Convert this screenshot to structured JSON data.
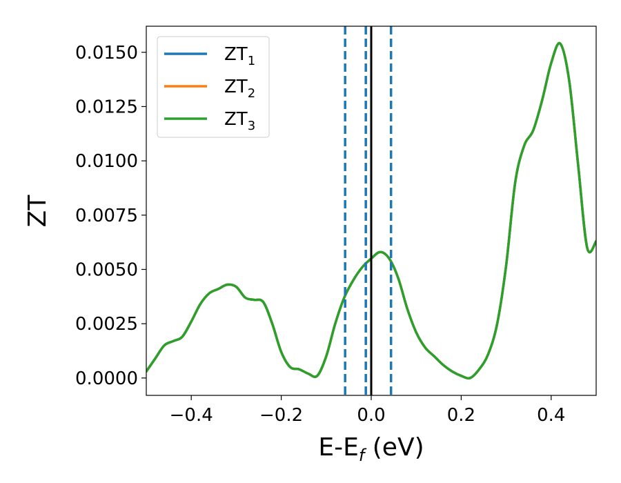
{
  "chart_data": {
    "type": "line",
    "xlabel": "E-E",
    "xlabel_sub": "f",
    "xlabel_unit": " (eV)",
    "ylabel": "ZT",
    "xlim": [
      -0.5,
      0.5
    ],
    "ylim": [
      -0.0008,
      0.0162
    ],
    "xticks": [
      -0.4,
      -0.2,
      0.0,
      0.2,
      0.4
    ],
    "xtick_labels": [
      "−0.4",
      "−0.2",
      "0.0",
      "0.2",
      "0.4"
    ],
    "yticks": [
      0.0,
      0.0025,
      0.005,
      0.0075,
      0.01,
      0.0125,
      0.015
    ],
    "ytick_labels": [
      "0.0000",
      "0.0025",
      "0.0050",
      "0.0075",
      "0.0100",
      "0.0125",
      "0.0150"
    ],
    "grid": false,
    "legend_position": "upper-left",
    "vlines": [
      {
        "x": 0.0,
        "style": "solid",
        "color": "#000000"
      },
      {
        "x": -0.058,
        "style": "dashed",
        "color": "#1f77b4"
      },
      {
        "x": -0.012,
        "style": "dashed",
        "color": "#1f77b4"
      },
      {
        "x": 0.044,
        "style": "dashed",
        "color": "#1f77b4"
      }
    ],
    "x": [
      -0.5,
      -0.48,
      -0.46,
      -0.44,
      -0.42,
      -0.4,
      -0.38,
      -0.36,
      -0.34,
      -0.32,
      -0.3,
      -0.28,
      -0.26,
      -0.24,
      -0.22,
      -0.2,
      -0.18,
      -0.16,
      -0.14,
      -0.12,
      -0.1,
      -0.08,
      -0.06,
      -0.04,
      -0.02,
      0.0,
      0.02,
      0.04,
      0.06,
      0.08,
      0.1,
      0.12,
      0.14,
      0.16,
      0.18,
      0.2,
      0.22,
      0.24,
      0.26,
      0.28,
      0.3,
      0.32,
      0.34,
      0.36,
      0.38,
      0.4,
      0.42,
      0.44,
      0.46,
      0.48,
      0.5
    ],
    "series": [
      {
        "name": "ZT",
        "name_sub": "1",
        "color": "#1f77b4",
        "values": [
          0.0003,
          0.0009,
          0.0015,
          0.0017,
          0.0019,
          0.0026,
          0.0034,
          0.0039,
          0.0041,
          0.0043,
          0.0042,
          0.0037,
          0.0036,
          0.0035,
          0.0025,
          0.0012,
          0.0005,
          0.0004,
          0.0002,
          0.0001,
          0.001,
          0.0025,
          0.0037,
          0.0045,
          0.0051,
          0.0055,
          0.0058,
          0.0055,
          0.0046,
          0.0032,
          0.0021,
          0.0014,
          0.001,
          0.0006,
          0.0003,
          0.0001,
          0.0,
          0.0004,
          0.0011,
          0.0025,
          0.0052,
          0.009,
          0.0107,
          0.0114,
          0.0128,
          0.0145,
          0.0154,
          0.0137,
          0.0098,
          0.006,
          0.0063
        ]
      },
      {
        "name": "ZT",
        "name_sub": "2",
        "color": "#ff7f0e",
        "values": [
          0.0003,
          0.0009,
          0.0015,
          0.0017,
          0.0019,
          0.0026,
          0.0034,
          0.0039,
          0.0041,
          0.0043,
          0.0042,
          0.0037,
          0.0036,
          0.0035,
          0.0025,
          0.0012,
          0.0005,
          0.0004,
          0.0002,
          0.0001,
          0.001,
          0.0025,
          0.0037,
          0.0045,
          0.0051,
          0.0055,
          0.0058,
          0.0055,
          0.0046,
          0.0032,
          0.0021,
          0.0014,
          0.001,
          0.0006,
          0.0003,
          0.0001,
          0.0,
          0.0004,
          0.0011,
          0.0025,
          0.0052,
          0.009,
          0.0107,
          0.0114,
          0.0128,
          0.0145,
          0.0154,
          0.0137,
          0.0098,
          0.006,
          0.0063
        ]
      },
      {
        "name": "ZT",
        "name_sub": "3",
        "color": "#2ca02c",
        "values": [
          0.0003,
          0.0009,
          0.0015,
          0.0017,
          0.0019,
          0.0026,
          0.0034,
          0.0039,
          0.0041,
          0.0043,
          0.0042,
          0.0037,
          0.0036,
          0.0035,
          0.0025,
          0.0012,
          0.0005,
          0.0004,
          0.0002,
          0.0001,
          0.001,
          0.0025,
          0.0037,
          0.0045,
          0.0051,
          0.0055,
          0.0058,
          0.0055,
          0.0046,
          0.0032,
          0.0021,
          0.0014,
          0.001,
          0.0006,
          0.0003,
          0.0001,
          0.0,
          0.0004,
          0.0011,
          0.0025,
          0.0052,
          0.009,
          0.0107,
          0.0114,
          0.0128,
          0.0145,
          0.0154,
          0.0137,
          0.0098,
          0.006,
          0.0063
        ]
      }
    ]
  }
}
